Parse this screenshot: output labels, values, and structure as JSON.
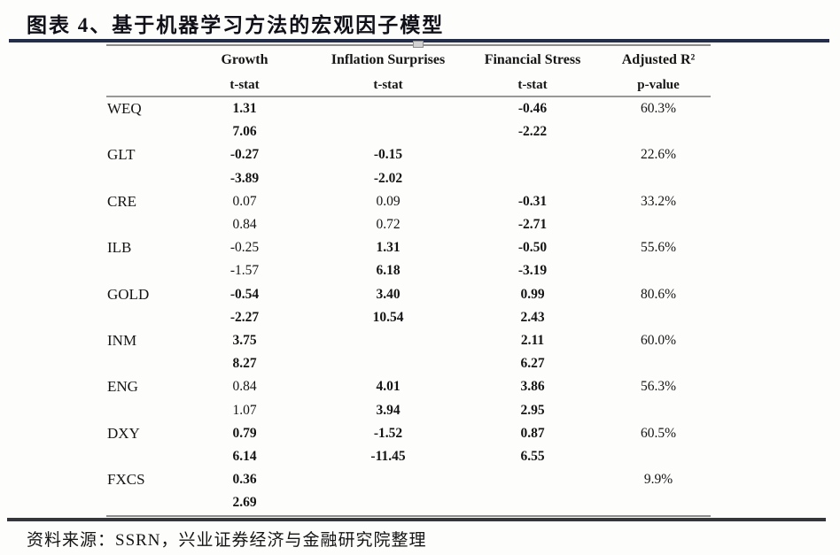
{
  "title": "图表 4、基于机器学习方法的宏观因子模型",
  "source_note": "资料来源：SSRN，兴业证券经济与金融研究院整理",
  "colors": {
    "title_rule": "#242e49",
    "table_line": "#8d8d8d",
    "footer_rule": "#35353c",
    "text": "#151515"
  },
  "table": {
    "columns": [
      "Growth",
      "Inflation Surprises",
      "Financial Stress",
      "Adjusted R²"
    ],
    "subheaders": [
      "t-stat",
      "t-stat",
      "t-stat",
      "p-value"
    ],
    "rows": [
      {
        "factor": "WEQ",
        "g": "1.31",
        "gt": "7.06",
        "i": "",
        "it": "",
        "f": "-0.46",
        "ft": "-2.22",
        "r2": "60.3%",
        "bold": {
          "g": true,
          "i": false,
          "f": true
        }
      },
      {
        "factor": "GLT",
        "g": "-0.27",
        "gt": "-3.89",
        "i": "-0.15",
        "it": "-2.02",
        "f": "",
        "ft": "",
        "r2": "22.6%",
        "bold": {
          "g": true,
          "i": true,
          "f": false
        }
      },
      {
        "factor": "CRE",
        "g": "0.07",
        "gt": "0.84",
        "i": "0.09",
        "it": "0.72",
        "f": "-0.31",
        "ft": "-2.71",
        "r2": "33.2%",
        "bold": {
          "g": false,
          "i": false,
          "f": true
        }
      },
      {
        "factor": "ILB",
        "g": "-0.25",
        "gt": "-1.57",
        "i": "1.31",
        "it": "6.18",
        "f": "-0.50",
        "ft": "-3.19",
        "r2": "55.6%",
        "bold": {
          "g": false,
          "i": true,
          "f": true
        }
      },
      {
        "factor": "GOLD",
        "g": "-0.54",
        "gt": "-2.27",
        "i": "3.40",
        "it": "10.54",
        "f": "0.99",
        "ft": "2.43",
        "r2": "80.6%",
        "bold": {
          "g": true,
          "i": true,
          "f": true
        }
      },
      {
        "factor": "INM",
        "g": "3.75",
        "gt": "8.27",
        "i": "",
        "it": "",
        "f": "2.11",
        "ft": "6.27",
        "r2": "60.0%",
        "bold": {
          "g": true,
          "i": false,
          "f": true
        }
      },
      {
        "factor": "ENG",
        "g": "0.84",
        "gt": "1.07",
        "i": "4.01",
        "it": "3.94",
        "f": "3.86",
        "ft": "2.95",
        "r2": "56.3%",
        "bold": {
          "g": false,
          "i": true,
          "f": true
        }
      },
      {
        "factor": "DXY",
        "g": "0.79",
        "gt": "6.14",
        "i": "-1.52",
        "it": "-11.45",
        "f": "0.87",
        "ft": "6.55",
        "r2": "60.5%",
        "bold": {
          "g": true,
          "i": true,
          "f": true
        }
      },
      {
        "factor": "FXCS",
        "g": "0.36",
        "gt": "2.69",
        "i": "",
        "it": "",
        "f": "",
        "ft": "",
        "r2": "9.9%",
        "bold": {
          "g": true,
          "i": false,
          "f": false
        }
      }
    ]
  }
}
